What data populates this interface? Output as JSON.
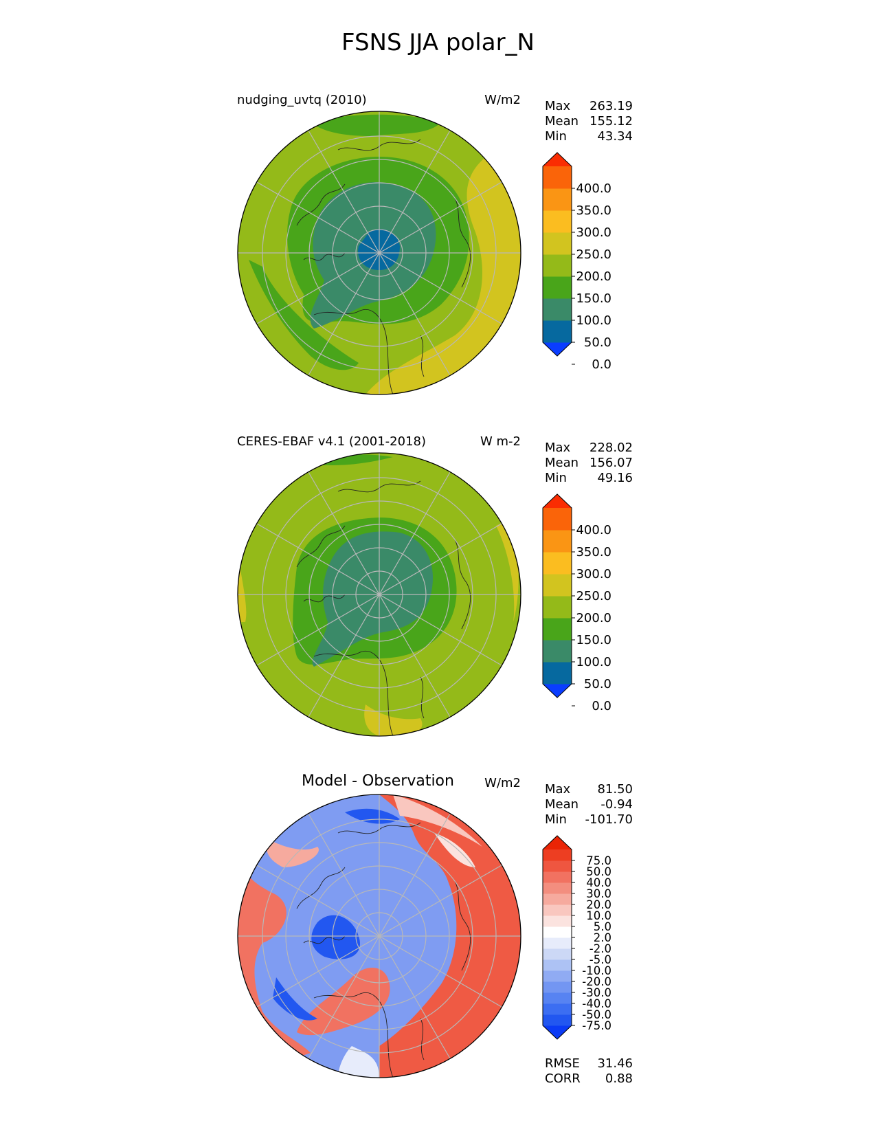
{
  "title": "FSNS JJA polar_N",
  "panels": [
    {
      "title": "nudging_uvtq (2010)",
      "units": "W/m2",
      "stats": [
        {
          "label": "Max",
          "value": "263.19"
        },
        {
          "label": "Mean",
          "value": "155.12"
        },
        {
          "label": "Min",
          "value": "43.34"
        }
      ]
    },
    {
      "title": "CERES-EBAF v4.1 (2001-2018)",
      "units": "W m-2",
      "stats": [
        {
          "label": "Max",
          "value": "228.02"
        },
        {
          "label": "Mean",
          "value": "156.07"
        },
        {
          "label": "Min",
          "value": "49.16"
        }
      ]
    },
    {
      "title": "Model - Observation",
      "units": "W/m2",
      "stats": [
        {
          "label": "Max",
          "value": "81.50"
        },
        {
          "label": "Mean",
          "value": "-0.94"
        },
        {
          "label": "Min",
          "value": "-101.70"
        }
      ],
      "metrics": [
        {
          "label": "RMSE",
          "value": "31.46"
        },
        {
          "label": "CORR",
          "value": "0.88"
        }
      ]
    }
  ],
  "colorbar_main": {
    "ticks": [
      "400.0",
      "350.0",
      "300.0",
      "250.0",
      "200.0",
      "150.0",
      "100.0",
      "50.0",
      "0.0"
    ],
    "colors": [
      "#0a3dff",
      "#06699f",
      "#3a8a68",
      "#49a51a",
      "#94ba19",
      "#d2c41f",
      "#fbbd20",
      "#fa9514",
      "#fa6409",
      "#fa2d02"
    ]
  },
  "colorbar_diff": {
    "ticks": [
      "75.0",
      "50.0",
      "40.0",
      "30.0",
      "20.0",
      "10.0",
      "5.0",
      "2.0",
      "-2.0",
      "-5.0",
      "-10.0",
      "-20.0",
      "-30.0",
      "-40.0",
      "-50.0",
      "-75.0"
    ],
    "colors": [
      "#0b3bf5",
      "#2257f0",
      "#3c6ef2",
      "#5783f2",
      "#7396f2",
      "#90abf3",
      "#adc2f4",
      "#ccd8f6",
      "#e7ecfb",
      "#ffffff",
      "#fbe3df",
      "#f9c7bf",
      "#f6aa9e",
      "#f38e7f",
      "#f17261",
      "#ef5640",
      "#ed3e22",
      "#ea2405"
    ]
  },
  "chart_data": [
    {
      "type": "heatmap",
      "title": "nudging_uvtq (2010)",
      "projection": "north polar stereographic",
      "units": "W/m2",
      "levels": [
        0,
        50,
        100,
        150,
        200,
        250,
        300,
        350,
        400
      ],
      "stats": {
        "max": 263.19,
        "mean": 155.12,
        "min": 43.34
      }
    },
    {
      "type": "heatmap",
      "title": "CERES-EBAF v4.1 (2001-2018)",
      "projection": "north polar stereographic",
      "units": "W m-2",
      "levels": [
        0,
        50,
        100,
        150,
        200,
        250,
        300,
        350,
        400
      ],
      "stats": {
        "max": 228.02,
        "mean": 156.07,
        "min": 49.16
      }
    },
    {
      "type": "heatmap",
      "title": "Model - Observation",
      "projection": "north polar stereographic",
      "units": "W/m2",
      "levels": [
        -75,
        -50,
        -40,
        -30,
        -20,
        -10,
        -5,
        -2,
        2,
        5,
        10,
        20,
        30,
        40,
        50,
        75
      ],
      "stats": {
        "max": 81.5,
        "mean": -0.94,
        "min": -101.7
      },
      "metrics": {
        "rmse": 31.46,
        "corr": 0.88
      }
    }
  ]
}
